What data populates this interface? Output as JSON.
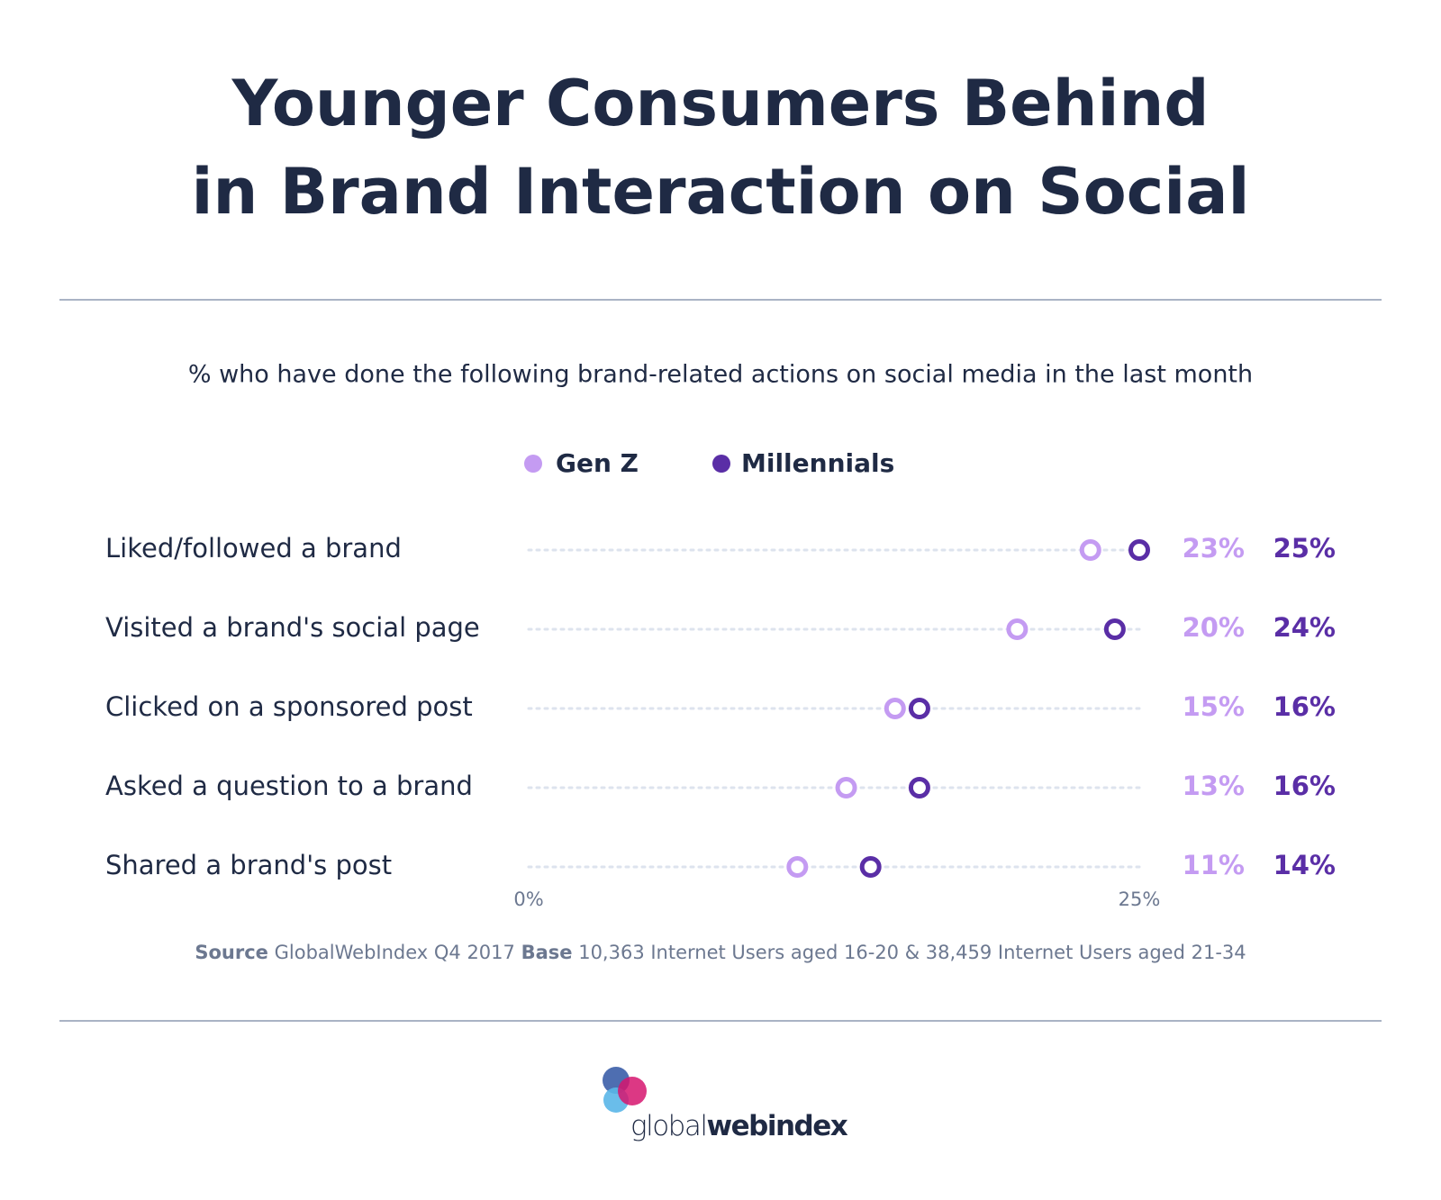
{
  "chart_data": {
    "type": "dumbbell",
    "title": [
      "Younger Consumers Behind",
      "in Brand Interaction on Social"
    ],
    "subtitle": "% who have done the following brand-related actions on social media in the last month",
    "categories": [
      "Liked/followed a brand",
      "Visited a brand's social page",
      "Clicked on a sponsored post",
      "Asked a question to a brand",
      "Shared a brand's post"
    ],
    "series": [
      {
        "name": "Gen Z",
        "color": "#c49bf2",
        "values": [
          23,
          20,
          15,
          13,
          11
        ],
        "value_labels": [
          "23%",
          "20%",
          "15%",
          "13%",
          "11%"
        ]
      },
      {
        "name": "Millennials",
        "color": "#5a2ea6",
        "values": [
          25,
          24,
          16,
          16,
          14
        ],
        "value_labels": [
          "25%",
          "24%",
          "16%",
          "16%",
          "14%"
        ]
      }
    ],
    "xlim": [
      0,
      25
    ],
    "xticks": [
      {
        "value": 0,
        "label": "0%"
      },
      {
        "value": 25,
        "label": "25%"
      }
    ],
    "source": {
      "source_label": "Source",
      "source_text": "GlobalWebIndex Q4 2017",
      "base_label": "Base",
      "base_text": "10,363 Internet Users aged 16-20 & 38,459 Internet Users aged 21-34"
    },
    "logo": {
      "light": "global",
      "bold": "webindex"
    }
  }
}
